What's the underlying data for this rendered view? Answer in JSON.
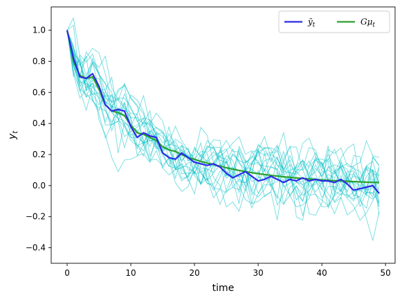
{
  "chart_data": {
    "type": "line",
    "xlabel": "time",
    "ylabel": "y_t",
    "xlim": [
      -2.5,
      51.5
    ],
    "ylim": [
      -0.5,
      1.15
    ],
    "xticks": [
      0,
      10,
      20,
      30,
      40,
      50
    ],
    "yticks": [
      -0.4,
      -0.2,
      0.0,
      0.2,
      0.4,
      0.6,
      0.8,
      1.0
    ],
    "ytick_labels": [
      "−0.4",
      "−0.2",
      "0.0",
      "0.2",
      "0.4",
      "0.6",
      "0.8",
      "1.0"
    ],
    "grid": false,
    "legend_position": "top-right",
    "colors": {
      "mean": "#2a2ae8",
      "gmu": "#2ca02c",
      "paths": "#00bfc4"
    },
    "series": [
      {
        "name": "ȳ_t",
        "legend_label": "ȳ",
        "legend_sub": "t",
        "color": "#2a2ae8",
        "values": [
          1.0,
          0.82,
          0.7,
          0.69,
          0.72,
          0.64,
          0.52,
          0.48,
          0.49,
          0.48,
          0.38,
          0.31,
          0.34,
          0.32,
          0.31,
          0.21,
          0.18,
          0.17,
          0.21,
          0.18,
          0.15,
          0.14,
          0.13,
          0.14,
          0.12,
          0.08,
          0.05,
          0.07,
          0.09,
          0.06,
          0.03,
          0.04,
          0.06,
          0.04,
          0.02,
          0.04,
          0.03,
          0.05,
          0.03,
          0.04,
          0.03,
          0.03,
          0.02,
          0.04,
          0.01,
          -0.03,
          -0.02,
          -0.01,
          0.0,
          -0.05
        ]
      },
      {
        "name": "Gμ_t",
        "legend_label": "Gμ",
        "legend_sub": "t",
        "color": "#2ca02c",
        "values": [
          1.0,
          0.8,
          0.71,
          0.69,
          0.7,
          0.62,
          0.52,
          0.48,
          0.47,
          0.45,
          0.39,
          0.34,
          0.33,
          0.31,
          0.29,
          0.25,
          0.23,
          0.22,
          0.2,
          0.18,
          0.17,
          0.155,
          0.145,
          0.135,
          0.125,
          0.115,
          0.105,
          0.098,
          0.09,
          0.083,
          0.077,
          0.071,
          0.066,
          0.061,
          0.057,
          0.053,
          0.049,
          0.046,
          0.043,
          0.04,
          0.037,
          0.034,
          0.032,
          0.03,
          0.028,
          0.026,
          0.024,
          0.022,
          0.021,
          0.02
        ]
      }
    ],
    "simulated_paths": {
      "count": 20,
      "length": 50,
      "start": 1.0,
      "color": "#00bfc4",
      "opacity": 0.55
    }
  }
}
